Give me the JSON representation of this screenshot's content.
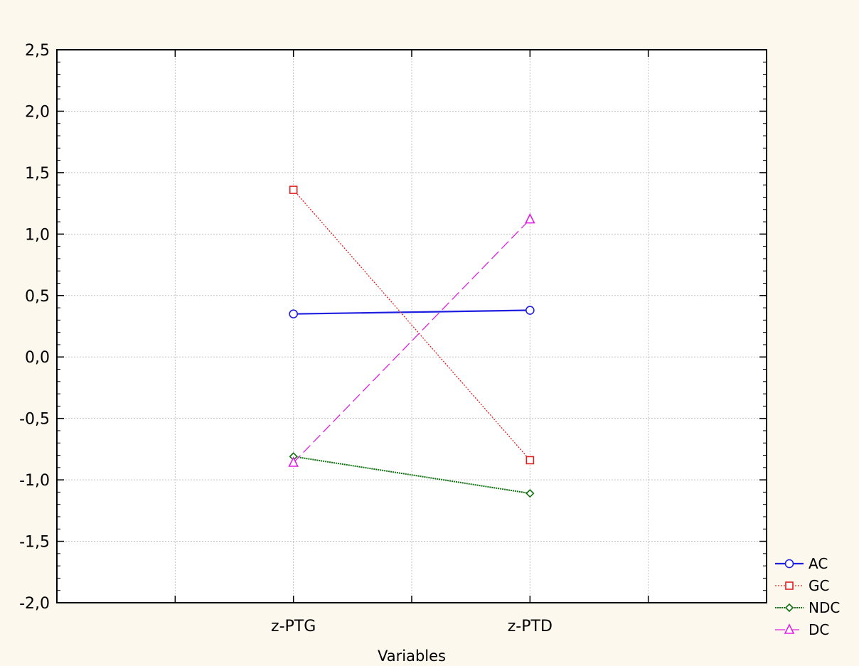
{
  "chart_data": {
    "type": "line",
    "title": "",
    "xlabel": "Variables",
    "ylabel": "",
    "categories": [
      "z-PTG",
      "z-PTD"
    ],
    "ylim": [
      -2.0,
      2.5
    ],
    "yticks": [
      "2,5",
      "2,0",
      "1,5",
      "1,0",
      "0,5",
      "0,0",
      "-0,5",
      "-1,0",
      "-1,5",
      "-2,0"
    ],
    "ytick_values": [
      2.5,
      2.0,
      1.5,
      1.0,
      0.5,
      0.0,
      -0.5,
      -1.0,
      -1.5,
      -2.0
    ],
    "grid": true,
    "legend_position": "bottom-right",
    "series": [
      {
        "name": "AC",
        "values": [
          0.35,
          0.38
        ],
        "color": "#1f1fe0",
        "marker": "circle",
        "dash": "solid"
      },
      {
        "name": "GC",
        "values": [
          1.36,
          -0.84
        ],
        "color": "#e02020",
        "marker": "square",
        "dash": "dotted"
      },
      {
        "name": "NDC",
        "values": [
          -0.81,
          -1.11
        ],
        "color": "#107010",
        "marker": "diamond",
        "dash": "dense-dotted"
      },
      {
        "name": "DC",
        "values": [
          -0.86,
          1.12
        ],
        "color": "#e020e0",
        "marker": "triangle",
        "dash": "long-dash"
      }
    ],
    "background_color": "#fdf8ee",
    "plot_background_color": "#ffffff"
  }
}
